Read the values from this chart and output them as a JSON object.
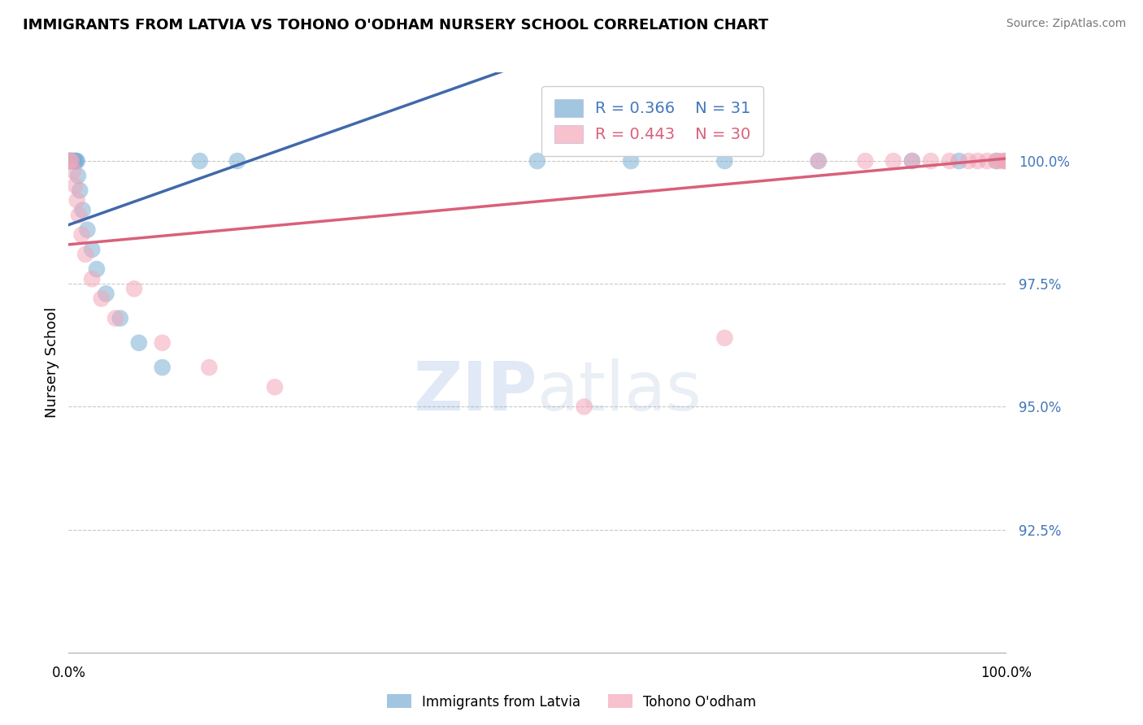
{
  "title": "IMMIGRANTS FROM LATVIA VS TOHONO O'ODHAM NURSERY SCHOOL CORRELATION CHART",
  "source": "Source: ZipAtlas.com",
  "ylabel": "Nursery School",
  "yticks": [
    92.5,
    95.0,
    97.5,
    100.0
  ],
  "ytick_labels": [
    "92.5%",
    "95.0%",
    "97.5%",
    "100.0%"
  ],
  "xlim": [
    0.0,
    100.0
  ],
  "ylim": [
    90.0,
    101.8
  ],
  "blue_label": "Immigrants from Latvia",
  "pink_label": "Tohono O'odham",
  "blue_R": 0.366,
  "blue_N": 31,
  "pink_R": 0.443,
  "pink_N": 30,
  "blue_color": "#7BAFD4",
  "pink_color": "#F4A7B9",
  "blue_line_color": "#4169AA",
  "pink_line_color": "#D9607A",
  "blue_x": [
    0.1,
    0.2,
    0.3,
    0.4,
    0.5,
    0.6,
    0.7,
    0.8,
    0.9,
    1.0,
    1.1,
    1.3,
    1.5,
    1.8,
    2.2,
    2.8,
    3.5,
    4.5,
    6.0,
    8.0,
    10.0,
    13.0,
    17.0,
    22.0,
    50.0,
    60.0,
    70.0,
    80.0,
    90.0,
    98.0,
    100.0
  ],
  "blue_y": [
    100.0,
    100.0,
    100.0,
    100.0,
    100.0,
    100.0,
    100.0,
    100.0,
    100.0,
    100.0,
    99.5,
    99.2,
    98.8,
    98.5,
    98.0,
    97.5,
    97.0,
    96.5,
    96.0,
    95.5,
    95.0,
    100.0,
    100.0,
    100.0,
    100.0,
    100.0,
    100.0,
    100.0,
    100.0,
    100.0,
    100.0
  ],
  "pink_x": [
    0.2,
    0.4,
    0.6,
    0.8,
    1.0,
    1.2,
    1.5,
    2.0,
    2.5,
    3.5,
    4.5,
    6.0,
    9.0,
    14.0,
    20.0,
    30.0,
    55.0,
    70.0,
    80.0,
    85.0,
    88.0,
    90.0,
    92.0,
    95.0,
    97.0,
    98.0,
    99.0,
    99.5,
    100.0,
    100.0
  ],
  "pink_y": [
    100.0,
    100.0,
    99.8,
    99.5,
    99.2,
    99.0,
    98.8,
    98.5,
    98.2,
    97.5,
    98.5,
    97.0,
    96.5,
    96.0,
    95.5,
    95.2,
    94.8,
    96.5,
    100.0,
    100.0,
    100.0,
    100.0,
    100.0,
    100.0,
    100.0,
    100.0,
    100.0,
    100.0,
    100.0,
    100.0
  ],
  "blue_line_x0": 0.0,
  "blue_line_y0": 99.8,
  "blue_line_x1": 20.0,
  "blue_line_y1": 100.05,
  "pink_line_x0": 0.0,
  "pink_line_y0": 98.2,
  "pink_line_x1": 100.0,
  "pink_line_y1": 100.05
}
